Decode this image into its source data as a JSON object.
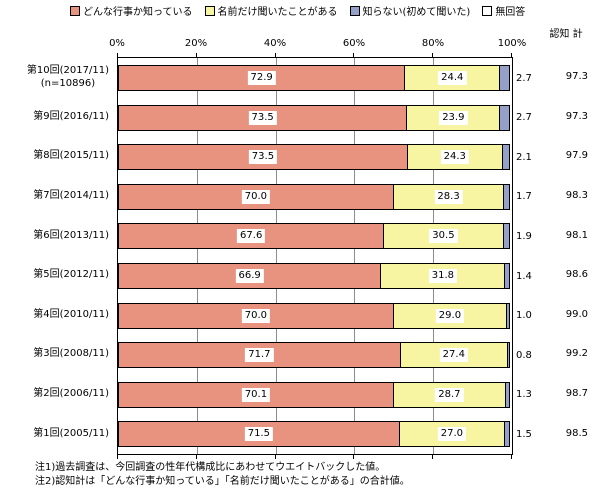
{
  "legend": {
    "items": [
      {
        "label": "どんな行事か知っている",
        "color": "#E8937F"
      },
      {
        "label": "名前だけ聞いたことがある",
        "color": "#F8F5A2"
      },
      {
        "label": "知らない(初めて聞いた)",
        "color": "#95A0C8"
      },
      {
        "label": "無回答",
        "color": "#FFFFFF"
      }
    ]
  },
  "axis": {
    "ticks": [
      "0%",
      "20%",
      "40%",
      "60%",
      "80%",
      "100%"
    ]
  },
  "total_header": "認知 計",
  "rows": [
    {
      "label": "第10回(2017/11)",
      "sublabel": "(n=10896)",
      "known": "72.9",
      "heard": "24.4",
      "unknown": "2.7",
      "total": "97.3"
    },
    {
      "label": "第9回(2016/11)",
      "sublabel": "",
      "known": "73.5",
      "heard": "23.9",
      "unknown": "2.7",
      "total": "97.3"
    },
    {
      "label": "第8回(2015/11)",
      "sublabel": "",
      "known": "73.5",
      "heard": "24.3",
      "unknown": "2.1",
      "total": "97.9"
    },
    {
      "label": "第7回(2014/11)",
      "sublabel": "",
      "known": "70.0",
      "heard": "28.3",
      "unknown": "1.7",
      "total": "98.3"
    },
    {
      "label": "第6回(2013/11)",
      "sublabel": "",
      "known": "67.6",
      "heard": "30.5",
      "unknown": "1.9",
      "total": "98.1"
    },
    {
      "label": "第5回(2012/11)",
      "sublabel": "",
      "known": "66.9",
      "heard": "31.8",
      "unknown": "1.4",
      "total": "98.6"
    },
    {
      "label": "第4回(2010/11)",
      "sublabel": "",
      "known": "70.0",
      "heard": "29.0",
      "unknown": "1.0",
      "total": "99.0"
    },
    {
      "label": "第3回(2008/11)",
      "sublabel": "",
      "known": "71.7",
      "heard": "27.4",
      "unknown": "0.8",
      "total": "99.2"
    },
    {
      "label": "第2回(2006/11)",
      "sublabel": "",
      "known": "70.1",
      "heard": "28.7",
      "unknown": "1.3",
      "total": "98.7"
    },
    {
      "label": "第1回(2005/11)",
      "sublabel": "",
      "known": "71.5",
      "heard": "27.0",
      "unknown": "1.5",
      "total": "98.5"
    }
  ],
  "notes": [
    "注1)過去調査は、今回調査の性年代構成比にあわせてウエイトバックした値。",
    "注2)認知計は「どんな行事か知っている」「名前だけ聞いたことがある」の合計値。"
  ],
  "chart_data": {
    "type": "bar",
    "orientation": "horizontal-stacked",
    "categories": [
      "第10回(2017/11) (n=10896)",
      "第9回(2016/11)",
      "第8回(2015/11)",
      "第7回(2014/11)",
      "第6回(2013/11)",
      "第5回(2012/11)",
      "第4回(2010/11)",
      "第3回(2008/11)",
      "第2回(2006/11)",
      "第1回(2005/11)"
    ],
    "series": [
      {
        "name": "どんな行事か知っている",
        "color": "#E8937F",
        "values": [
          72.9,
          73.5,
          73.5,
          70.0,
          67.6,
          66.9,
          70.0,
          71.7,
          70.1,
          71.5
        ]
      },
      {
        "name": "名前だけ聞いたことがある",
        "color": "#F8F5A2",
        "values": [
          24.4,
          23.9,
          24.3,
          28.3,
          30.5,
          31.8,
          29.0,
          27.4,
          28.7,
          27.0
        ]
      },
      {
        "name": "知らない(初めて聞いた)",
        "color": "#95A0C8",
        "values": [
          2.7,
          2.7,
          2.1,
          1.7,
          1.9,
          1.4,
          1.0,
          0.8,
          1.3,
          1.5
        ]
      },
      {
        "name": "無回答",
        "color": "#FFFFFF",
        "values": [
          0,
          0,
          0,
          0,
          0,
          0,
          0,
          0,
          0,
          0
        ]
      }
    ],
    "totals_label": "認知 計",
    "totals": [
      97.3,
      97.3,
      97.9,
      98.3,
      98.1,
      98.6,
      99.0,
      99.2,
      98.7,
      98.5
    ],
    "xlim": [
      0,
      100
    ],
    "xticks": [
      "0%",
      "20%",
      "40%",
      "60%",
      "80%",
      "100%"
    ],
    "legend_position": "top",
    "grid": true
  }
}
